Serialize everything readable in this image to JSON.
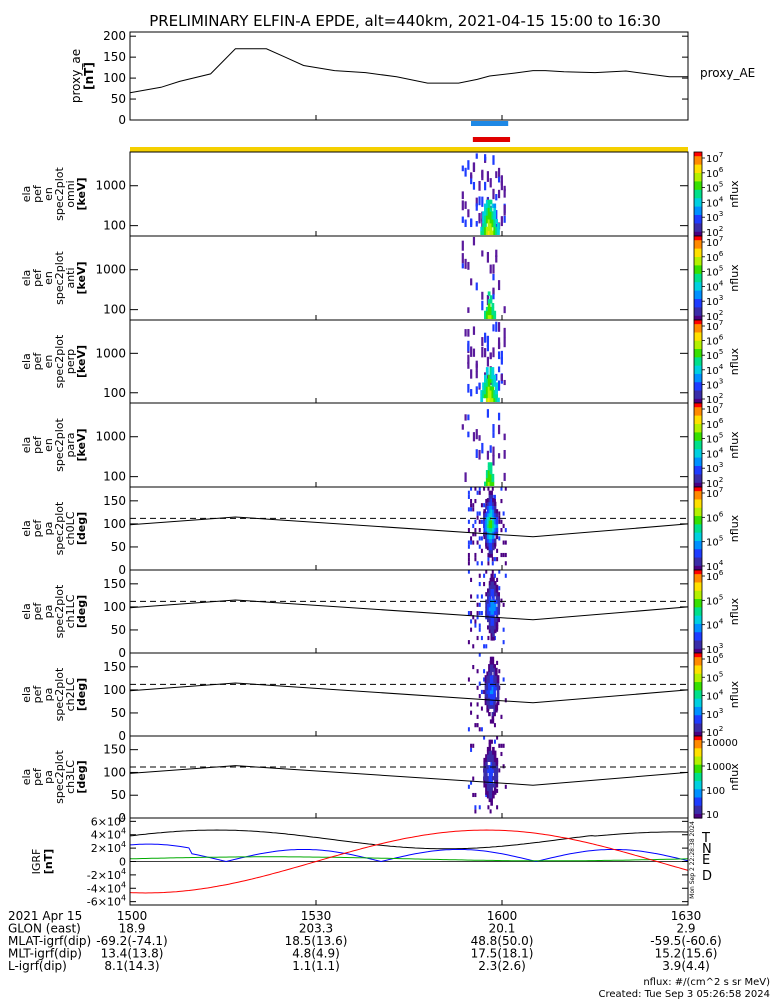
{
  "title": "PRELIMINARY ELFIN-A EPDE, alt=440km, 2021-04-15 15:00 to 16:30",
  "colors": {
    "blue_bar": "#1e88e5",
    "red_bar": "#e00000",
    "yellow_bar": "#f5d000",
    "T": "#000000",
    "N": "#0000ff",
    "E": "#00aa00",
    "D": "#ff0000"
  },
  "chart_data": [
    {
      "type": "line",
      "name": "proxy_ae",
      "ylabel": "proxy_ae [nT]",
      "legend": "proxy_AE",
      "ylim": [
        0,
        210
      ],
      "yticks": [
        0,
        50,
        100,
        150,
        200
      ],
      "x_minutes": [
        0,
        5,
        8,
        13,
        17,
        22,
        25,
        28,
        33,
        38,
        43,
        48,
        51,
        53,
        56,
        58,
        62,
        65,
        67,
        70,
        75,
        80,
        87,
        90
      ],
      "values": [
        65,
        78,
        92,
        110,
        170,
        170,
        150,
        130,
        118,
        113,
        103,
        88,
        88,
        88,
        97,
        105,
        112,
        118,
        118,
        115,
        113,
        117,
        103,
        103
      ]
    },
    {
      "type": "heatmap",
      "name": "ela pef en spec2plot omni [keV]",
      "ylabel_lines": [
        "ela",
        "pef",
        "en",
        "spec2plot",
        "omni",
        "[keV]"
      ],
      "yscale": "log",
      "ylim": [
        55,
        7000
      ],
      "yticks": [
        100,
        1000
      ],
      "colorbar": {
        "label": "nflux",
        "scale": "log",
        "ticks": [
          "10^7",
          "10^6",
          "10^5",
          "10^4",
          "10^3",
          "10^2"
        ]
      }
    },
    {
      "type": "heatmap",
      "name": "ela pef en spec2plot anti [keV]",
      "ylabel_lines": [
        "ela",
        "pef",
        "en",
        "spec2plot",
        "anti",
        "[keV]"
      ],
      "yscale": "log",
      "ylim": [
        55,
        7000
      ],
      "yticks": [
        100,
        1000
      ],
      "colorbar": {
        "label": "nflux",
        "scale": "log",
        "ticks": [
          "10^7",
          "10^6",
          "10^5",
          "10^4",
          "10^3",
          "10^2"
        ]
      }
    },
    {
      "type": "heatmap",
      "name": "ela pef en spec2plot perp [keV]",
      "ylabel_lines": [
        "ela",
        "pef",
        "en",
        "spec2plot",
        "perp",
        "[keV]"
      ],
      "yscale": "log",
      "ylim": [
        55,
        7000
      ],
      "yticks": [
        100,
        1000
      ],
      "colorbar": {
        "label": "nflux",
        "scale": "log",
        "ticks": [
          "10^7",
          "10^6",
          "10^5",
          "10^4",
          "10^3",
          "10^2"
        ]
      }
    },
    {
      "type": "heatmap",
      "name": "ela pef en spec2plot para [keV]",
      "ylabel_lines": [
        "ela",
        "pef",
        "en",
        "spec2plot",
        "para",
        "[keV]"
      ],
      "yscale": "log",
      "ylim": [
        55,
        7000
      ],
      "yticks": [
        100,
        1000
      ],
      "colorbar": {
        "label": "nflux",
        "scale": "log",
        "ticks": [
          "10^7",
          "10^6",
          "10^5",
          "10^4",
          "10^3",
          "10^2"
        ]
      }
    },
    {
      "type": "heatmap",
      "name": "ela pef pa spec2plot ch0LC [deg]",
      "ylabel_lines": [
        "ela",
        "pef",
        "pa",
        "spec2plot",
        "ch0LC",
        "[deg]"
      ],
      "ylim": [
        0,
        180
      ],
      "yticks": [
        0,
        50,
        100,
        150
      ],
      "colorbar": {
        "label": "nflux",
        "scale": "log",
        "ticks": [
          "10^7",
          "10^6",
          "10^5",
          "10^4"
        ]
      }
    },
    {
      "type": "heatmap",
      "name": "ela pef pa spec2plot ch1LC [deg]",
      "ylabel_lines": [
        "ela",
        "pef",
        "pa",
        "spec2plot",
        "ch1LC",
        "[deg]"
      ],
      "ylim": [
        0,
        180
      ],
      "yticks": [
        0,
        50,
        100,
        150
      ],
      "colorbar": {
        "label": "nflux",
        "scale": "log",
        "ticks": [
          "10^6",
          "10^5",
          "10^4",
          "10^3"
        ]
      }
    },
    {
      "type": "heatmap",
      "name": "ela pef pa spec2plot ch2LC [deg]",
      "ylabel_lines": [
        "ela",
        "pef",
        "pa",
        "spec2plot",
        "ch2LC",
        "[deg]"
      ],
      "ylim": [
        0,
        180
      ],
      "yticks": [
        0,
        50,
        100,
        150
      ],
      "colorbar": {
        "label": "nflux",
        "scale": "log",
        "ticks": [
          "10^6",
          "10^5",
          "10^4",
          "10^3",
          "10^2"
        ]
      }
    },
    {
      "type": "heatmap",
      "name": "ela pef pa spec2plot ch3LC [deg]",
      "ylabel_lines": [
        "ela",
        "pef",
        "pa",
        "spec2plot",
        "ch3LC",
        "[deg]"
      ],
      "ylim": [
        0,
        180
      ],
      "yticks": [
        0,
        50,
        100,
        150
      ],
      "colorbar": {
        "label": "nflux",
        "scale": "log",
        "ticks": [
          "10000",
          "1000",
          "100",
          "10"
        ]
      }
    },
    {
      "type": "line",
      "name": "IGRF [nT]",
      "ylabel": "IGRF [nT]",
      "ylim": [
        -65000,
        65000
      ],
      "yticks": [
        "-6x10^4",
        "-4x10^4",
        "-2x10^4",
        "0",
        "2x10^4",
        "4x10^4",
        "6x10^4"
      ],
      "legend": [
        "T",
        "N",
        "E",
        "D"
      ],
      "side_text": "Mon Sep 2 22:28:38 2024"
    }
  ],
  "pa_dashed_level": 112,
  "pa_loss_cone_deg": [
    [
      0,
      98
    ],
    [
      17,
      115
    ],
    [
      65,
      72
    ],
    [
      90,
      100
    ]
  ],
  "xaxis": {
    "ticks": [
      "1500",
      "1530",
      "1600",
      "1630"
    ],
    "rows": [
      {
        "label": "2021 Apr 15",
        "values": [
          "1500",
          "1530",
          "1600",
          "1630"
        ]
      },
      {
        "label": "GLON (east)",
        "values": [
          "18.9",
          "203.3",
          "20.1",
          "2.9"
        ]
      },
      {
        "label": "MLAT-igrf(dip)",
        "values": [
          "-69.2(-74.1)",
          "18.5(13.6)",
          "48.8(50.0)",
          "-59.5(-60.6)"
        ]
      },
      {
        "label": "MLT-igrf(dip)",
        "values": [
          "13.4(13.8)",
          "4.8(4.9)",
          "17.5(18.1)",
          "15.2(15.6)"
        ]
      },
      {
        "label": "L-igrf(dip)",
        "values": [
          "8.1(14.3)",
          "1.1(1.1)",
          "2.3(2.6)",
          "3.9(4.4)"
        ]
      }
    ]
  },
  "footer": {
    "units": "nflux: #/(cm^2 s sr MeV)",
    "created": "Created: Tue Sep  3 05:26:58 2024"
  }
}
